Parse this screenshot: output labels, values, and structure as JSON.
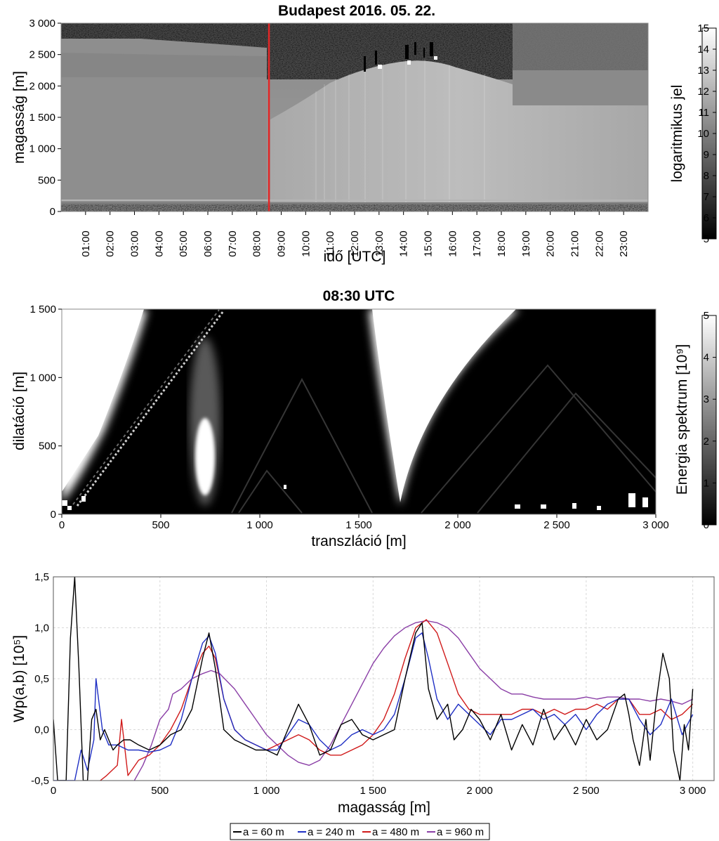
{
  "colors": {
    "marker": "#e32626",
    "series": [
      "#000000",
      "#1f2fc4",
      "#d01a1a",
      "#8a3ea6"
    ]
  },
  "chart_data": [
    {
      "type": "heatmap",
      "title": "Budapest 2016. 05. 22.",
      "xlabel": "idő [UTC]",
      "ylabel": "magasság [m]",
      "x_ticks": [
        "01:00",
        "02:00",
        "03:00",
        "04:00",
        "05:00",
        "06:00",
        "07:00",
        "08:00",
        "09:00",
        "10:00",
        "11:00",
        "12:00",
        "13:00",
        "14:00",
        "15:00",
        "16:00",
        "17:00",
        "18:00",
        "19:00",
        "20:00",
        "21:00",
        "22:00",
        "23:00"
      ],
      "xlim": [
        "00:00",
        "24:00"
      ],
      "y_ticks": [
        "0",
        "500",
        "1 000",
        "1 500",
        "2 000",
        "2 500",
        "3 000"
      ],
      "ylim": [
        0,
        3000
      ],
      "marker_time": "08:30",
      "colorbar": {
        "label": "logaritmikus jel",
        "ticks": [
          "5",
          "6",
          "7",
          "8",
          "9",
          "10",
          "11",
          "12",
          "13",
          "14",
          "15"
        ],
        "range": [
          5,
          15
        ],
        "colormap": "gray"
      }
    },
    {
      "type": "heatmap",
      "title": "08:30 UTC",
      "xlabel": "transzláció [m]",
      "ylabel": "dilatáció [m]",
      "x_ticks": [
        "0",
        "500",
        "1 000",
        "1 500",
        "2 000",
        "2 500",
        "3 000"
      ],
      "xlim": [
        0,
        3000
      ],
      "y_ticks": [
        "0",
        "500",
        "1 000",
        "1 500"
      ],
      "ylim": [
        0,
        1500
      ],
      "colorbar": {
        "label": "Energia spektrum [10⁹]",
        "ticks": [
          "0",
          "1",
          "2",
          "3",
          "4",
          "5"
        ],
        "range": [
          0,
          5
        ],
        "colormap": "gray"
      }
    },
    {
      "type": "line",
      "xlabel": "magasság [m]",
      "ylabel": "Wp(a,b) [10⁵]",
      "x_ticks": [
        "0",
        "500",
        "1 000",
        "1 500",
        "2 000",
        "2 500",
        "3 000"
      ],
      "xlim": [
        0,
        3100
      ],
      "y_ticks": [
        "-0,5",
        "0,0",
        "0,5",
        "1,0",
        "1,5"
      ],
      "ylim": [
        -0.5,
        1.5
      ],
      "grid": true,
      "legend_position": "bottom",
      "series": [
        {
          "name": "a = 60 m",
          "x": [
            0,
            20,
            40,
            60,
            80,
            100,
            120,
            140,
            160,
            180,
            200,
            220,
            240,
            260,
            280,
            300,
            330,
            360,
            400,
            450,
            500,
            550,
            600,
            650,
            700,
            730,
            760,
            800,
            850,
            900,
            950,
            1000,
            1050,
            1100,
            1150,
            1200,
            1250,
            1300,
            1350,
            1400,
            1450,
            1500,
            1550,
            1600,
            1650,
            1700,
            1730,
            1760,
            1800,
            1850,
            1880,
            1920,
            1960,
            2000,
            2050,
            2100,
            2150,
            2200,
            2250,
            2300,
            2350,
            2400,
            2450,
            2500,
            2550,
            2600,
            2650,
            2680,
            2700,
            2720,
            2750,
            2780,
            2800,
            2830,
            2860,
            2890,
            2910,
            2940,
            2960,
            2980,
            3000
          ],
          "y": [
            0.1,
            -0.5,
            -0.5,
            -0.5,
            0.9,
            1.5,
            0.6,
            -0.5,
            -0.5,
            0.1,
            0.2,
            -0.1,
            0.0,
            -0.1,
            -0.2,
            -0.15,
            -0.1,
            -0.1,
            -0.15,
            -0.2,
            -0.15,
            -0.05,
            0.0,
            0.2,
            0.7,
            0.95,
            0.6,
            0.0,
            -0.1,
            -0.15,
            -0.2,
            -0.2,
            -0.25,
            0.0,
            0.25,
            0.05,
            -0.25,
            -0.2,
            0.05,
            0.1,
            -0.05,
            -0.1,
            -0.05,
            0.0,
            0.5,
            0.95,
            1.05,
            0.4,
            0.1,
            0.25,
            -0.1,
            0.0,
            0.2,
            0.1,
            -0.1,
            0.15,
            -0.2,
            0.05,
            -0.15,
            0.2,
            -0.1,
            0.05,
            -0.15,
            0.1,
            -0.1,
            0.0,
            0.3,
            0.35,
            0.15,
            -0.1,
            -0.35,
            0.1,
            -0.3,
            0.3,
            0.75,
            0.5,
            -0.2,
            -0.5,
            0.05,
            -0.2,
            0.4
          ]
        },
        {
          "name": "a = 240 m",
          "x": [
            0,
            40,
            80,
            100,
            130,
            160,
            190,
            200,
            230,
            260,
            300,
            350,
            400,
            450,
            500,
            550,
            600,
            650,
            700,
            730,
            760,
            800,
            850,
            900,
            950,
            1000,
            1050,
            1100,
            1150,
            1200,
            1250,
            1300,
            1350,
            1400,
            1450,
            1500,
            1550,
            1600,
            1650,
            1700,
            1730,
            1760,
            1800,
            1850,
            1900,
            1950,
            2000,
            2050,
            2100,
            2150,
            2200,
            2250,
            2300,
            2350,
            2400,
            2450,
            2500,
            2550,
            2600,
            2650,
            2700,
            2750,
            2800,
            2850,
            2900,
            2950,
            3000
          ],
          "y": [
            -0.5,
            -0.5,
            -0.5,
            -0.5,
            -0.2,
            -0.4,
            -0.1,
            0.5,
            0.0,
            -0.15,
            -0.15,
            -0.2,
            -0.2,
            -0.22,
            -0.2,
            -0.15,
            0.1,
            0.5,
            0.85,
            0.92,
            0.75,
            0.3,
            0.0,
            -0.1,
            -0.15,
            -0.2,
            -0.2,
            -0.05,
            0.1,
            0.05,
            -0.1,
            -0.2,
            -0.15,
            -0.05,
            0.0,
            -0.05,
            0.0,
            0.15,
            0.5,
            0.9,
            0.95,
            0.7,
            0.3,
            0.1,
            0.25,
            0.15,
            0.05,
            -0.05,
            0.1,
            0.1,
            0.15,
            0.2,
            0.1,
            0.15,
            0.05,
            0.15,
            0.0,
            0.15,
            0.25,
            0.3,
            0.3,
            0.1,
            -0.05,
            0.05,
            0.3,
            -0.05,
            0.15
          ]
        },
        {
          "name": "a = 480 m",
          "x": [
            220,
            250,
            300,
            320,
            350,
            400,
            450,
            500,
            550,
            600,
            650,
            700,
            730,
            760,
            800,
            850,
            900,
            950,
            1000,
            1050,
            1100,
            1150,
            1200,
            1250,
            1300,
            1350,
            1400,
            1450,
            1500,
            1550,
            1600,
            1650,
            1700,
            1750,
            1800,
            1850,
            1900,
            1950,
            2000,
            2050,
            2100,
            2150,
            2200,
            2250,
            2300,
            2350,
            2400,
            2450,
            2500,
            2550,
            2600,
            2650,
            2700,
            2750,
            2800,
            2850,
            2900,
            2950,
            3000
          ],
          "y": [
            -0.5,
            -0.45,
            -0.35,
            0.1,
            -0.45,
            -0.3,
            -0.25,
            -0.15,
            0.0,
            0.2,
            0.5,
            0.75,
            0.82,
            0.7,
            0.3,
            0.0,
            -0.1,
            -0.15,
            -0.2,
            -0.15,
            -0.1,
            -0.05,
            -0.1,
            -0.2,
            -0.25,
            -0.25,
            -0.2,
            -0.15,
            -0.05,
            0.1,
            0.35,
            0.7,
            1.0,
            1.08,
            0.95,
            0.65,
            0.35,
            0.2,
            0.15,
            0.15,
            0.15,
            0.15,
            0.2,
            0.2,
            0.15,
            0.2,
            0.15,
            0.2,
            0.2,
            0.25,
            0.2,
            0.3,
            0.3,
            0.15,
            0.15,
            0.2,
            0.1,
            0.15,
            0.25
          ]
        },
        {
          "name": "a = 960 m",
          "x": [
            380,
            420,
            460,
            500,
            540,
            560,
            600,
            650,
            700,
            740,
            780,
            850,
            900,
            950,
            1000,
            1050,
            1100,
            1150,
            1200,
            1250,
            1300,
            1350,
            1400,
            1450,
            1500,
            1550,
            1600,
            1650,
            1700,
            1750,
            1800,
            1850,
            1900,
            1950,
            2000,
            2050,
            2100,
            2150,
            2200,
            2250,
            2300,
            2350,
            2400,
            2450,
            2500,
            2550,
            2600,
            2650,
            2700,
            2750,
            2800,
            2850,
            2900,
            2950,
            3000
          ],
          "y": [
            -0.5,
            -0.35,
            -0.15,
            0.1,
            0.2,
            0.35,
            0.4,
            0.5,
            0.55,
            0.58,
            0.55,
            0.4,
            0.25,
            0.1,
            -0.05,
            -0.15,
            -0.25,
            -0.32,
            -0.35,
            -0.3,
            -0.15,
            0.05,
            0.25,
            0.45,
            0.65,
            0.8,
            0.92,
            1.0,
            1.05,
            1.07,
            1.05,
            1.0,
            0.9,
            0.75,
            0.6,
            0.5,
            0.4,
            0.35,
            0.35,
            0.32,
            0.3,
            0.3,
            0.3,
            0.3,
            0.32,
            0.3,
            0.32,
            0.32,
            0.3,
            0.3,
            0.28,
            0.3,
            0.28,
            0.25,
            0.3
          ]
        }
      ]
    }
  ]
}
